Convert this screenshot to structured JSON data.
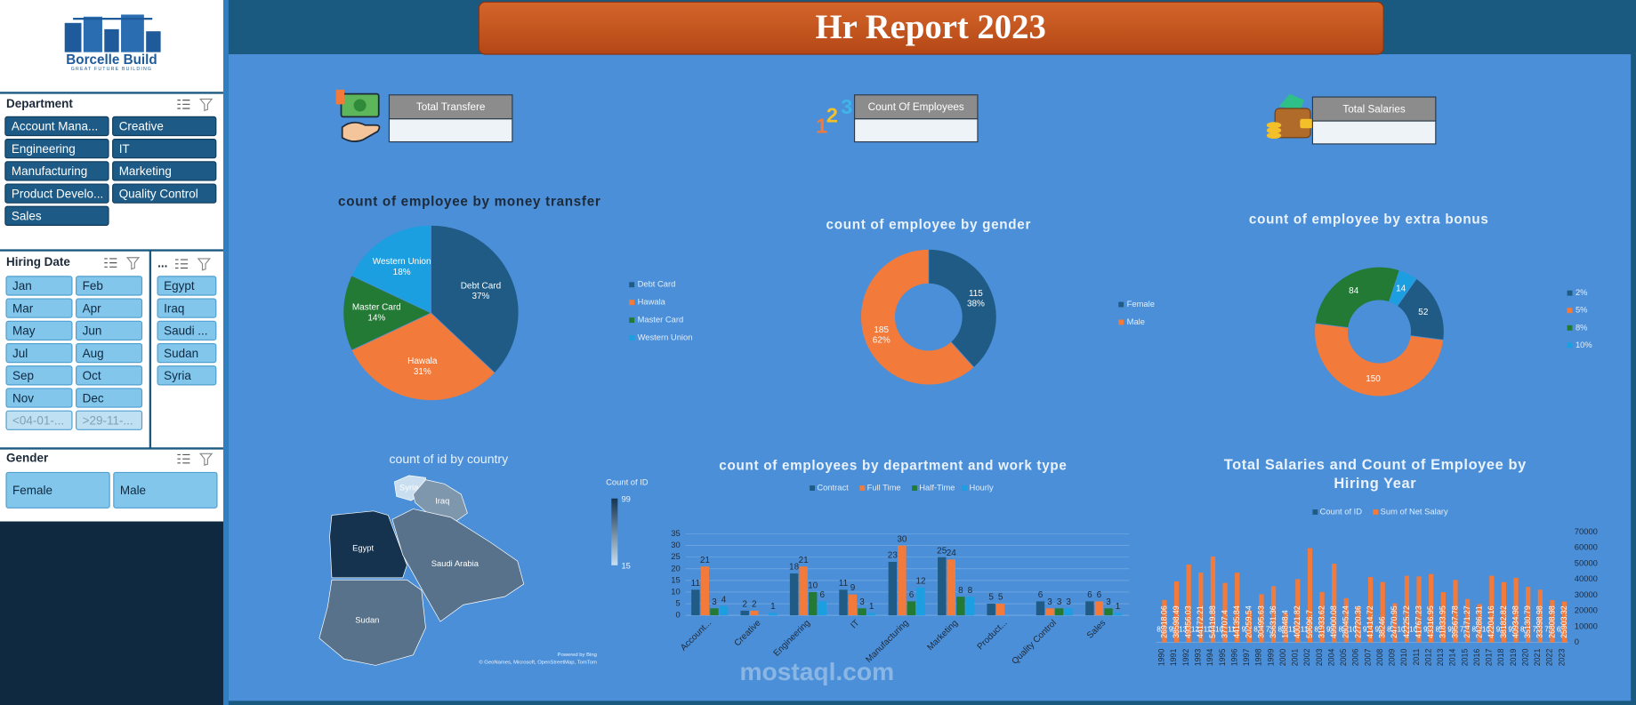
{
  "logo": {
    "name": "Borcelle Build",
    "tagline": "GREAT FUTURE BUILDING"
  },
  "header": {
    "title": "Hr Report 2023"
  },
  "slicers": [
    {
      "title": "Department",
      "items": [
        "Account Mana...",
        "Creative",
        "Engineering",
        "IT",
        "Manufacturing",
        "Marketing",
        "Product Develo...",
        "Quality Control",
        "Sales"
      ]
    },
    {
      "title": "Hiring Date",
      "items": [
        "Jan",
        "Feb",
        "Mar",
        "Apr",
        "May",
        "Jun",
        "Jul",
        "Aug",
        "Sep",
        "Oct",
        "Nov",
        "Dec",
        "<04-01-...",
        ">29-11-..."
      ]
    },
    {
      "title": "...",
      "items": [
        "Egypt",
        "Iraq",
        "Saudi ...",
        "Sudan",
        "Syria"
      ]
    },
    {
      "title": "Gender",
      "items": [
        "Female",
        "Male"
      ]
    }
  ],
  "kpis": [
    {
      "label": "Total Transfere"
    },
    {
      "label": "Count Of Employees"
    },
    {
      "label": "Total Salaries"
    }
  ],
  "watermark": "mostaql.com",
  "chart_data": [
    {
      "type": "pie",
      "title": "count of employee by money transfer",
      "categories": [
        "Debt Card",
        "Hawala",
        "Master Card",
        "Western Union"
      ],
      "values": [
        37,
        31,
        14,
        18
      ],
      "value_labels": [
        "37%",
        "31%",
        "14%",
        "18%"
      ],
      "colors": [
        "#1f5b85",
        "#f27b3b",
        "#227a35",
        "#1b9fe0"
      ]
    },
    {
      "type": "donut",
      "title": "count of employee by gender",
      "categories": [
        "Female",
        "Male"
      ],
      "values": [
        115,
        185
      ],
      "value_labels": [
        "38%",
        "62%"
      ],
      "colors": [
        "#1f5b85",
        "#f27b3b"
      ]
    },
    {
      "type": "donut",
      "title": "count of employee by extra bonus",
      "categories": [
        "2%",
        "5%",
        "8%",
        "10%"
      ],
      "values": [
        52,
        150,
        84,
        14
      ],
      "colors": [
        "#1f5b85",
        "#f27b3b",
        "#227a35",
        "#1b9fe0"
      ]
    },
    {
      "type": "map",
      "title": "count of id by country",
      "categories": [
        "Syria",
        "Iraq",
        "Egypt",
        "Saudi Arabia",
        "Sudan"
      ],
      "values": [
        15,
        50,
        99,
        68,
        68
      ],
      "legend_title": "Count of ID",
      "colorlim": [
        15,
        99
      ],
      "attribution": [
        "Powered by Bing",
        "© GeoNames, Microsoft, OpenStreetMap, TomTom"
      ]
    },
    {
      "type": "bar",
      "title": "count of employees by department and work type",
      "categories": [
        "Account...",
        "Creative",
        "Engineering",
        "IT",
        "Manufacturing",
        "Marketing",
        "Product...",
        "Quality Control",
        "Sales"
      ],
      "series": [
        {
          "name": "Contract",
          "color": "#1f5b85",
          "values": [
            11,
            2,
            18,
            11,
            23,
            25,
            5,
            6,
            6
          ]
        },
        {
          "name": "Full Time",
          "color": "#f27b3b",
          "values": [
            21,
            2,
            21,
            9,
            30,
            24,
            5,
            3,
            6
          ]
        },
        {
          "name": "Half-Time",
          "color": "#227a35",
          "values": [
            3,
            null,
            10,
            3,
            6,
            8,
            null,
            3,
            3
          ]
        },
        {
          "name": "Hourly",
          "color": "#1b9fe0",
          "values": [
            4,
            1,
            6,
            1,
            12,
            8,
            null,
            3,
            1
          ]
        }
      ],
      "ylim": [
        0,
        35
      ],
      "yticks": [
        0,
        5,
        10,
        15,
        20,
        25,
        30,
        35
      ],
      "grid": true
    },
    {
      "type": "bar",
      "title": "Total Salaries and Count of Employee by Hiring Year",
      "categories": [
        "1990",
        "1991",
        "1992",
        "1993",
        "1994",
        "1995",
        "1996",
        "1997",
        "1998",
        "1999",
        "2000",
        "2001",
        "2002",
        "2003",
        "2004",
        "2005",
        "2006",
        "2007",
        "2008",
        "2009",
        "2010",
        "2011",
        "2012",
        "2013",
        "2014",
        "2015",
        "2016",
        "2017",
        "2018",
        "2019",
        "2020",
        "2021",
        "2022",
        "2023"
      ],
      "series": [
        {
          "name": "Count of ID",
          "color": "#1f5b85",
          "values": [
            8,
            9,
            13,
            12,
            11,
            10,
            11,
            9,
            8,
            7,
            8,
            11,
            11,
            8,
            9,
            8,
            10,
            9,
            9,
            8,
            10,
            10,
            9,
            8,
            9,
            7,
            8,
            10,
            9,
            9,
            8,
            7,
            7,
            6
          ]
        },
        {
          "name": "Sum of Net Salary",
          "color": "#f27b3b",
          "values": [
            26918.06,
            38598.49,
            49356.03,
            44172.21,
            54419.88,
            37707.4,
            44135.84,
            20259.54,
            30495.63,
            35631.36,
            18848.4,
            40021.82,
            59696.7,
            31933.62,
            49900.08,
            28045.24,
            22720.36,
            41414.72,
            38246,
            24770.95,
            42225.72,
            41767.23,
            43316.95,
            31833.95,
            39567.78,
            27471.27,
            24286.31,
            42204.16,
            38182.82,
            40934.98,
            35130.79,
            33398.98,
            26808.98,
            25903.32
          ]
        }
      ],
      "ylim": [
        0,
        70000
      ],
      "yticks": [
        0,
        10000,
        20000,
        30000,
        40000,
        50000,
        60000,
        70000
      ],
      "grid": false
    }
  ]
}
